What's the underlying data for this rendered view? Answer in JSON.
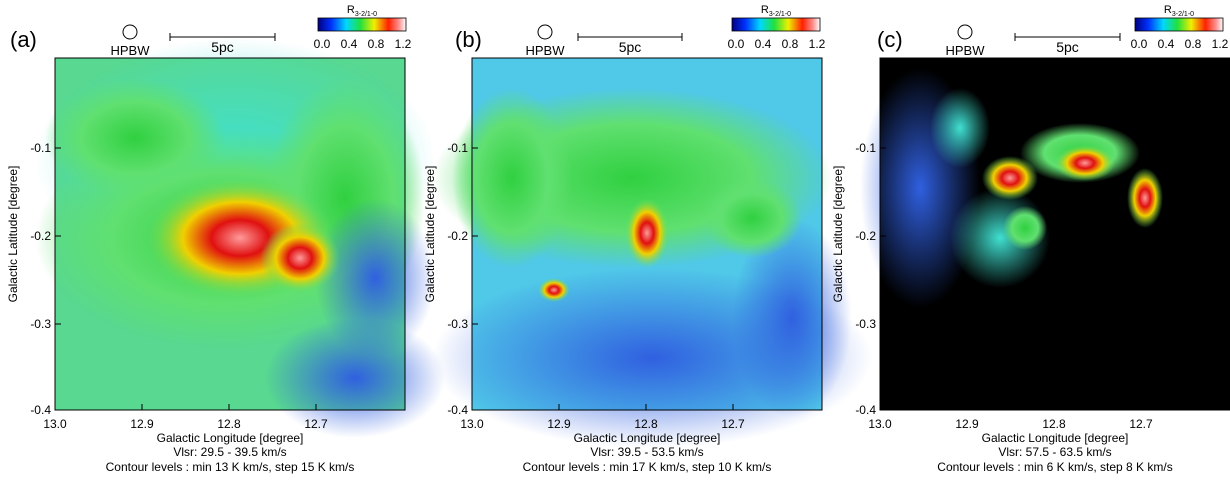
{
  "panels": [
    {
      "label": "(a)",
      "beam": "HPBW",
      "scale": "5pc",
      "colorbar": {
        "symbol": "R",
        "subscript": "3-2/1-0",
        "ticks": [
          "0.0",
          "0.4",
          "0.8",
          "1.2"
        ]
      },
      "xticks": [
        "13.0",
        "12.9",
        "12.8",
        "12.7"
      ],
      "yticks": [
        "-0.1",
        "-0.2",
        "-0.3",
        "-0.4"
      ],
      "xlabel": "Galactic Longitude [degree]",
      "ylabel": "Galactic Latitude [degree]",
      "velocity": "Vlsr: 29.5 - 39.5 km/s",
      "contours": "Contour levels : min 13 K km/s, step 15 K km/s"
    },
    {
      "label": "(b)",
      "beam": "HPBW",
      "scale": "5pc",
      "colorbar": {
        "symbol": "R",
        "subscript": "3-2/1-0",
        "ticks": [
          "0.0",
          "0.4",
          "0.8",
          "1.2"
        ]
      },
      "xticks": [
        "13.0",
        "12.9",
        "12.8",
        "12.7"
      ],
      "yticks": [
        "-0.1",
        "-0.2",
        "-0.3",
        "-0.4"
      ],
      "xlabel": "Galactic Longitude [degree]",
      "ylabel": "Galactic Latitude [degree]",
      "velocity": "Vlsr: 39.5 - 53.5 km/s",
      "contours": "Contour levels : min 17 K km/s, step 10 K km/s"
    },
    {
      "label": "(c)",
      "beam": "HPBW",
      "scale": "5pc",
      "colorbar": {
        "symbol": "R",
        "subscript": "3-2/1-0",
        "ticks": [
          "0.0",
          "0.4",
          "0.8",
          "1.2"
        ]
      },
      "xticks": [
        "13.0",
        "12.9",
        "12.8",
        "12.7"
      ],
      "yticks": [
        "-0.1",
        "-0.2",
        "-0.3",
        "-0.4"
      ],
      "xlabel": "Galactic Longitude [degree]",
      "ylabel": "Galactic Latitude [degree]",
      "velocity": "Vlsr: 57.5 - 63.5 km/s",
      "contours": "Contour levels : min 6 K km/s, step 8 K km/s"
    }
  ]
}
